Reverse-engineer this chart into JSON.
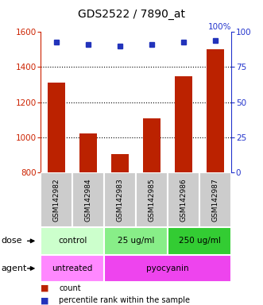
{
  "title": "GDS2522 / 7890_at",
  "samples": [
    "GSM142982",
    "GSM142984",
    "GSM142983",
    "GSM142985",
    "GSM142986",
    "GSM142987"
  ],
  "counts": [
    1310,
    1020,
    905,
    1110,
    1350,
    1500
  ],
  "percentiles": [
    93,
    91,
    90,
    91,
    93,
    94
  ],
  "ylim_left": [
    800,
    1600
  ],
  "ylim_right": [
    0,
    100
  ],
  "yticks_left": [
    800,
    1000,
    1200,
    1400,
    1600
  ],
  "yticks_right": [
    0,
    25,
    50,
    75,
    100
  ],
  "dose_groups": [
    {
      "label": "control",
      "start": 0,
      "end": 2,
      "color": "#ccffcc"
    },
    {
      "label": "25 ug/ml",
      "start": 2,
      "end": 4,
      "color": "#88ee88"
    },
    {
      "label": "250 ug/ml",
      "start": 4,
      "end": 6,
      "color": "#33cc33"
    }
  ],
  "agent_groups": [
    {
      "label": "untreated",
      "start": 0,
      "end": 2,
      "color": "#ff88ff"
    },
    {
      "label": "pyocyanin",
      "start": 2,
      "end": 6,
      "color": "#ee44ee"
    }
  ],
  "bar_color": "#bb2200",
  "dot_color": "#2233bb",
  "grid_color": "#000000",
  "left_axis_color": "#cc2200",
  "right_axis_color": "#2233cc",
  "sample_box_color": "#cccccc",
  "legend_bar_label": "count",
  "legend_dot_label": "percentile rank within the sample"
}
